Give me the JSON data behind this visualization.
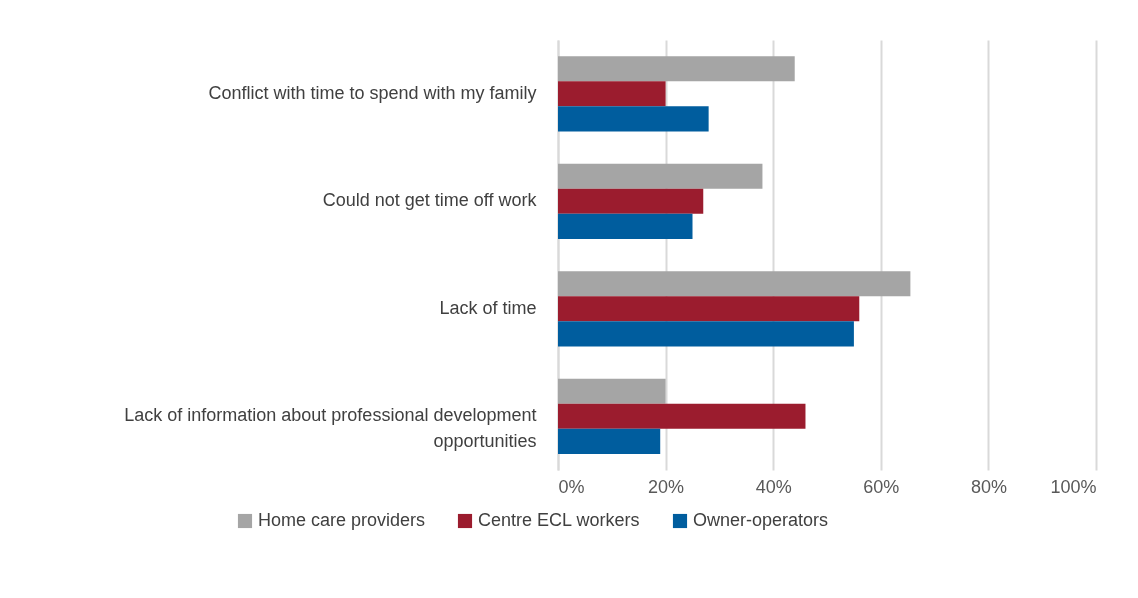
{
  "chart_data": {
    "type": "bar",
    "orientation": "horizontal",
    "categories": [
      "Conflict with time to spend with my family",
      "Could not get time off work",
      "Lack of time",
      "Lack of information about professional development opportunities"
    ],
    "series": [
      {
        "name": "Home care providers",
        "color": "#a5a5a5",
        "values": [
          44,
          38,
          65.5,
          20
        ]
      },
      {
        "name": "Centre ECL workers",
        "color": "#9b1c2e",
        "values": [
          20,
          27,
          56,
          46
        ]
      },
      {
        "name": "Owner-operators",
        "color": "#005d9e",
        "values": [
          28,
          25,
          55,
          19
        ]
      }
    ],
    "xlim": [
      0,
      100
    ],
    "xticks": [
      {
        "value": 0,
        "label": "0%"
      },
      {
        "value": 20,
        "label": "20%"
      },
      {
        "value": 40,
        "label": "40%"
      },
      {
        "value": 60,
        "label": "60%"
      },
      {
        "value": 80,
        "label": "80%"
      },
      {
        "value": 100,
        "label": "100%"
      }
    ],
    "grid": "x",
    "legend": "bottom"
  }
}
